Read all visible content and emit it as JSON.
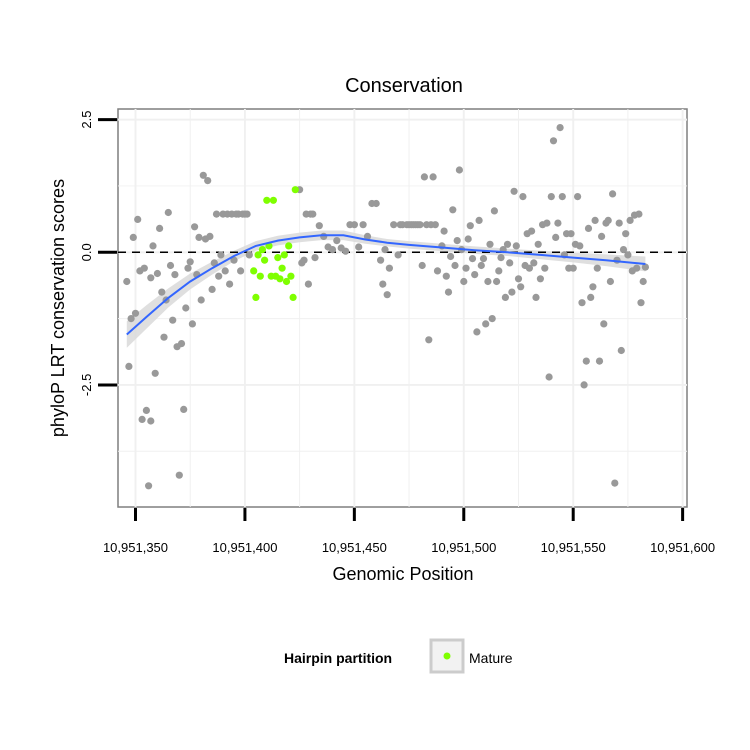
{
  "chart_data": {
    "type": "scatter",
    "title": "Conservation",
    "xlabel": "Genomic Position",
    "ylabel": "phyloP LRT conservation scores",
    "xlim": [
      10951342,
      10951602
    ],
    "ylim": [
      -4.8,
      2.7
    ],
    "x_ticks": [
      10951350,
      10951400,
      10951450,
      10951500,
      10951550,
      10951600
    ],
    "x_tick_labels": [
      "10,951,350",
      "10,951,400",
      "10,951,450",
      "10,951,500",
      "10,951,550",
      "10,951,600"
    ],
    "y_ticks": [
      -2.5,
      0.0,
      2.5
    ],
    "y_tick_labels": [
      "-2.5",
      "0.0",
      "2.5"
    ],
    "reference_line": {
      "y": 0,
      "style": "dashed"
    },
    "grid": true,
    "legend": {
      "title": "Hairpin partition",
      "position": "bottom",
      "entries": [
        {
          "label": "Mature",
          "color": "#7fff00"
        }
      ]
    },
    "colors": {
      "other": "#999999",
      "mature": "#7fff00",
      "smooth": "#3366ff",
      "band": "#d9d9d9"
    },
    "series": [
      {
        "name": "",
        "color": "#999999",
        "points": [
          [
            10951346,
            -0.55
          ],
          [
            10951347,
            -2.15
          ],
          [
            10951348,
            -1.25
          ],
          [
            10951349,
            0.28
          ],
          [
            10951350,
            -1.15
          ],
          [
            10951351,
            0.62
          ],
          [
            10951352,
            -0.35
          ],
          [
            10951353,
            -3.15
          ],
          [
            10951354,
            -0.3
          ],
          [
            10951355,
            -2.98
          ],
          [
            10951356,
            -4.4
          ],
          [
            10951357,
            -0.48
          ],
          [
            10951357,
            -3.18
          ],
          [
            10951358,
            0.12
          ],
          [
            10951359,
            -2.28
          ],
          [
            10951360,
            -0.4
          ],
          [
            10951361,
            0.45
          ],
          [
            10951362,
            -0.75
          ],
          [
            10951363,
            -1.6
          ],
          [
            10951364,
            -0.9
          ],
          [
            10951365,
            0.75
          ],
          [
            10951366,
            -0.25
          ],
          [
            10951367,
            -1.28
          ],
          [
            10951368,
            -0.42
          ],
          [
            10951369,
            -1.78
          ],
          [
            10951370,
            -4.2
          ],
          [
            10951371,
            -1.72
          ],
          [
            10951372,
            -2.96
          ],
          [
            10951373,
            -1.05
          ],
          [
            10951374,
            -0.3
          ],
          [
            10951375,
            -0.18
          ],
          [
            10951376,
            -1.35
          ],
          [
            10951377,
            0.48
          ],
          [
            10951378,
            -0.42
          ],
          [
            10951379,
            0.28
          ],
          [
            10951380,
            -0.9
          ],
          [
            10951381,
            1.45
          ],
          [
            10951382,
            0.25
          ],
          [
            10951383,
            1.35
          ],
          [
            10951384,
            0.3
          ],
          [
            10951385,
            -0.7
          ],
          [
            10951386,
            -0.2
          ],
          [
            10951387,
            0.72
          ],
          [
            10951388,
            -0.45
          ],
          [
            10951389,
            -0.05
          ],
          [
            10951390,
            0.72
          ],
          [
            10951391,
            -0.35
          ],
          [
            10951392,
            0.72
          ],
          [
            10951393,
            -0.6
          ],
          [
            10951394,
            0.72
          ],
          [
            10951395,
            -0.15
          ],
          [
            10951396,
            0.72
          ],
          [
            10951397,
            0.72
          ],
          [
            10951398,
            -0.35
          ],
          [
            10951399,
            0.72
          ],
          [
            10951400,
            0.72
          ],
          [
            10951401,
            0.72
          ],
          [
            10951402,
            -0.05
          ],
          [
            10951425,
            1.18
          ],
          [
            10951426,
            -0.2
          ],
          [
            10951427,
            -0.15
          ],
          [
            10951428,
            0.72
          ],
          [
            10951429,
            -0.6
          ],
          [
            10951430,
            0.72
          ],
          [
            10951431,
            0.72
          ],
          [
            10951432,
            -0.1
          ],
          [
            10951434,
            0.5
          ],
          [
            10951436,
            0.3
          ],
          [
            10951438,
            0.1
          ],
          [
            10951440,
            0.05
          ],
          [
            10951442,
            0.22
          ],
          [
            10951444,
            0.08
          ],
          [
            10951446,
            0.02
          ],
          [
            10951448,
            0.52
          ],
          [
            10951450,
            0.52
          ],
          [
            10951452,
            0.1
          ],
          [
            10951454,
            0.52
          ],
          [
            10951456,
            0.3
          ],
          [
            10951458,
            0.92
          ],
          [
            10951460,
            0.92
          ],
          [
            10951462,
            -0.15
          ],
          [
            10951463,
            -0.6
          ],
          [
            10951464,
            0.05
          ],
          [
            10951465,
            -0.8
          ],
          [
            10951466,
            -0.3
          ],
          [
            10951468,
            0.52
          ],
          [
            10951470,
            -0.05
          ],
          [
            10951471,
            0.52
          ],
          [
            10951472,
            0.52
          ],
          [
            10951474,
            0.52
          ],
          [
            10951475,
            0.52
          ],
          [
            10951476,
            0.52
          ],
          [
            10951477,
            0.52
          ],
          [
            10951478,
            0.52
          ],
          [
            10951479,
            0.52
          ],
          [
            10951480,
            0.52
          ],
          [
            10951481,
            -0.25
          ],
          [
            10951482,
            1.42
          ],
          [
            10951483,
            0.52
          ],
          [
            10951484,
            -1.65
          ],
          [
            10951485,
            0.52
          ],
          [
            10951486,
            1.42
          ],
          [
            10951487,
            0.52
          ],
          [
            10951488,
            -0.35
          ],
          [
            10951490,
            0.12
          ],
          [
            10951491,
            0.4
          ],
          [
            10951492,
            -0.45
          ],
          [
            10951493,
            -0.75
          ],
          [
            10951494,
            -0.08
          ],
          [
            10951495,
            0.8
          ],
          [
            10951496,
            -0.25
          ],
          [
            10951497,
            0.22
          ],
          [
            10951498,
            1.55
          ],
          [
            10951499,
            0.05
          ],
          [
            10951500,
            -0.55
          ],
          [
            10951501,
            -0.3
          ],
          [
            10951502,
            0.25
          ],
          [
            10951503,
            0.5
          ],
          [
            10951504,
            -0.12
          ],
          [
            10951505,
            -0.42
          ],
          [
            10951506,
            -1.5
          ],
          [
            10951507,
            0.6
          ],
          [
            10951508,
            -0.25
          ],
          [
            10951509,
            -0.12
          ],
          [
            10951510,
            -1.35
          ],
          [
            10951511,
            -0.55
          ],
          [
            10951512,
            0.15
          ],
          [
            10951513,
            -1.25
          ],
          [
            10951514,
            0.78
          ],
          [
            10951515,
            -0.55
          ],
          [
            10951516,
            -0.35
          ],
          [
            10951517,
            -0.1
          ],
          [
            10951518,
            0.05
          ],
          [
            10951519,
            -0.85
          ],
          [
            10951520,
            0.15
          ],
          [
            10951521,
            -0.2
          ],
          [
            10951522,
            -0.75
          ],
          [
            10951523,
            1.15
          ],
          [
            10951524,
            0.12
          ],
          [
            10951525,
            -0.5
          ],
          [
            10951526,
            -0.65
          ],
          [
            10951527,
            1.05
          ],
          [
            10951528,
            -0.25
          ],
          [
            10951529,
            0.35
          ],
          [
            10951530,
            -0.3
          ],
          [
            10951531,
            0.4
          ],
          [
            10951532,
            -0.2
          ],
          [
            10951533,
            -0.85
          ],
          [
            10951534,
            0.15
          ],
          [
            10951535,
            -0.5
          ],
          [
            10951536,
            0.52
          ],
          [
            10951537,
            -0.3
          ],
          [
            10951538,
            0.55
          ],
          [
            10951539,
            -2.35
          ],
          [
            10951540,
            1.05
          ],
          [
            10951541,
            2.1
          ],
          [
            10951542,
            0.28
          ],
          [
            10951543,
            0.55
          ],
          [
            10951544,
            2.35
          ],
          [
            10951545,
            1.05
          ],
          [
            10951546,
            -0.05
          ],
          [
            10951547,
            0.35
          ],
          [
            10951548,
            -0.3
          ],
          [
            10951549,
            0.35
          ],
          [
            10951550,
            -0.3
          ],
          [
            10951551,
            0.15
          ],
          [
            10951552,
            1.05
          ],
          [
            10951553,
            0.12
          ],
          [
            10951554,
            -0.95
          ],
          [
            10951555,
            -2.5
          ],
          [
            10951556,
            -2.05
          ],
          [
            10951557,
            0.45
          ],
          [
            10951558,
            -0.85
          ],
          [
            10951559,
            -0.65
          ],
          [
            10951560,
            0.6
          ],
          [
            10951561,
            -0.3
          ],
          [
            10951562,
            -2.05
          ],
          [
            10951563,
            0.3
          ],
          [
            10951564,
            -1.35
          ],
          [
            10951565,
            0.55
          ],
          [
            10951566,
            0.6
          ],
          [
            10951567,
            -0.55
          ],
          [
            10951568,
            1.1
          ],
          [
            10951569,
            -4.35
          ],
          [
            10951570,
            -0.15
          ],
          [
            10951571,
            0.55
          ],
          [
            10951572,
            -1.85
          ],
          [
            10951573,
            0.05
          ],
          [
            10951574,
            0.35
          ],
          [
            10951575,
            -0.05
          ],
          [
            10951576,
            0.6
          ],
          [
            10951577,
            -0.35
          ],
          [
            10951578,
            0.7
          ],
          [
            10951579,
            -0.3
          ],
          [
            10951580,
            0.72
          ],
          [
            10951581,
            -0.95
          ],
          [
            10951582,
            -0.55
          ],
          [
            10951583,
            -0.28
          ]
        ]
      },
      {
        "name": "Mature",
        "color": "#7fff00",
        "points": [
          [
            10951404,
            -0.35
          ],
          [
            10951405,
            -0.85
          ],
          [
            10951406,
            -0.05
          ],
          [
            10951407,
            -0.45
          ],
          [
            10951408,
            0.05
          ],
          [
            10951409,
            -0.15
          ],
          [
            10951410,
            0.98
          ],
          [
            10951411,
            0.12
          ],
          [
            10951412,
            -0.45
          ],
          [
            10951413,
            0.98
          ],
          [
            10951414,
            -0.45
          ],
          [
            10951415,
            -0.1
          ],
          [
            10951416,
            -0.5
          ],
          [
            10951417,
            -0.3
          ],
          [
            10951418,
            -0.05
          ],
          [
            10951419,
            -0.55
          ],
          [
            10951420,
            0.12
          ],
          [
            10951421,
            -0.45
          ],
          [
            10951422,
            -0.85
          ],
          [
            10951423,
            1.18
          ]
        ]
      }
    ],
    "smooth": {
      "x": [
        10951346,
        10951355,
        10951365,
        10951375,
        10951385,
        10951395,
        10951405,
        10951415,
        10951425,
        10951435,
        10951445,
        10951455,
        10951465,
        10951475,
        10951490,
        10951505,
        10951520,
        10951535,
        10951550,
        10951565,
        10951583
      ],
      "y": [
        -1.55,
        -1.22,
        -0.86,
        -0.55,
        -0.3,
        -0.07,
        0.12,
        0.22,
        0.28,
        0.32,
        0.32,
        0.24,
        0.18,
        0.14,
        0.09,
        0.04,
        0.0,
        -0.05,
        -0.1,
        -0.15,
        -0.22
      ],
      "se": [
        0.25,
        0.22,
        0.18,
        0.15,
        0.12,
        0.1,
        0.09,
        0.09,
        0.09,
        0.09,
        0.09,
        0.08,
        0.07,
        0.07,
        0.07,
        0.07,
        0.07,
        0.08,
        0.09,
        0.11,
        0.14
      ]
    }
  }
}
